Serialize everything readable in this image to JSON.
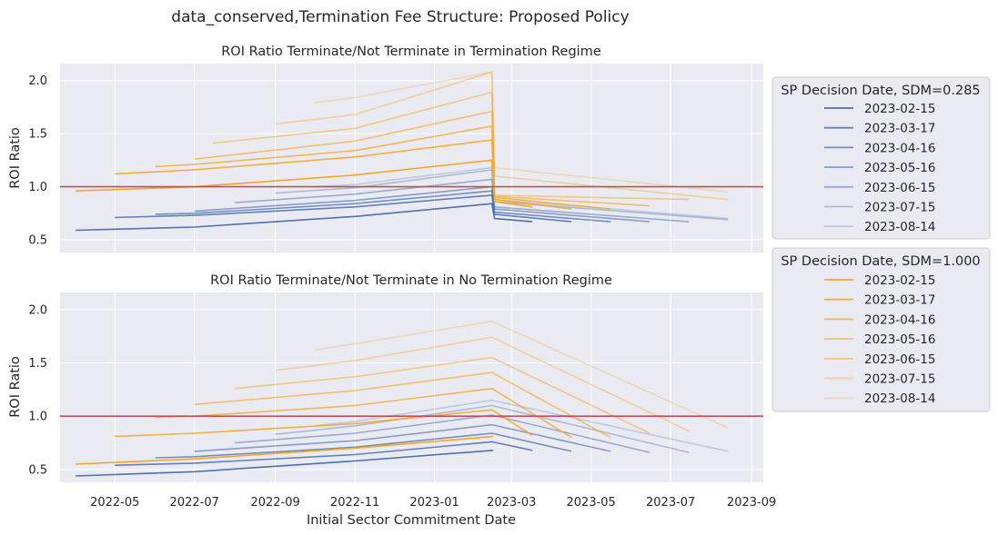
{
  "suptitle": "data_conserved,Termination Fee Structure: Proposed Policy",
  "colors": {
    "background": "#eaeaf2",
    "reference_line": "#c44e52",
    "blue_series": "#4c72b0",
    "orange_series": "#f5a623"
  },
  "chart_data": [
    {
      "type": "line",
      "title": "ROI Ratio Terminate/Not Terminate in Termination Regime",
      "xlabel": "",
      "ylabel": "ROI Ratio",
      "x_tick_labels": [],
      "yticks": [
        0.5,
        1.0,
        1.5,
        2.0
      ],
      "ylim": [
        0.38,
        2.16
      ],
      "xlim": [
        "2022-03-20",
        "2023-09-10"
      ],
      "grid": true,
      "reference_line": 1.0,
      "legend_groups": [
        {
          "title": "SP Decision Date, SDM=0.285",
          "entries": [
            "2023-02-15",
            "2023-03-17",
            "2023-04-16",
            "2023-05-16",
            "2023-06-15",
            "2023-07-15",
            "2023-08-14"
          ]
        }
      ],
      "series": [
        {
          "group": "blue",
          "label": "2023-02-15",
          "alpha": 1.0,
          "points": [
            [
              "2022-04-01",
              0.59
            ],
            [
              "2022-07-01",
              0.62
            ],
            [
              "2022-11-01",
              0.72
            ],
            [
              "2023-02-14",
              0.84
            ],
            [
              "2023-02-16",
              0.7
            ],
            [
              "2023-03-17",
              0.67
            ]
          ]
        },
        {
          "group": "blue",
          "label": "2023-03-17",
          "alpha": 0.88,
          "points": [
            [
              "2022-05-01",
              0.71
            ],
            [
              "2022-07-01",
              0.73
            ],
            [
              "2022-11-01",
              0.81
            ],
            [
              "2023-02-14",
              0.92
            ],
            [
              "2023-02-16",
              0.74
            ],
            [
              "2023-04-16",
              0.67
            ]
          ]
        },
        {
          "group": "blue",
          "label": "2023-04-16",
          "alpha": 0.76,
          "points": [
            [
              "2022-06-01",
              0.74
            ],
            [
              "2022-07-01",
              0.75
            ],
            [
              "2022-11-01",
              0.84
            ],
            [
              "2023-02-14",
              0.96
            ],
            [
              "2023-02-16",
              0.76
            ],
            [
              "2023-05-16",
              0.67
            ]
          ]
        },
        {
          "group": "blue",
          "label": "2023-05-16",
          "alpha": 0.64,
          "points": [
            [
              "2022-07-01",
              0.77
            ],
            [
              "2022-11-01",
              0.87
            ],
            [
              "2023-02-14",
              1.0
            ],
            [
              "2023-02-16",
              0.79
            ],
            [
              "2023-06-15",
              0.67
            ]
          ]
        },
        {
          "group": "blue",
          "label": "2023-06-15",
          "alpha": 0.52,
          "points": [
            [
              "2022-08-01",
              0.85
            ],
            [
              "2022-11-01",
              0.93
            ],
            [
              "2023-02-14",
              1.07
            ],
            [
              "2023-02-16",
              0.81
            ],
            [
              "2023-07-15",
              0.67
            ]
          ]
        },
        {
          "group": "blue",
          "label": "2023-07-15",
          "alpha": 0.4,
          "points": [
            [
              "2022-09-01",
              0.94
            ],
            [
              "2022-11-01",
              0.99
            ],
            [
              "2023-02-14",
              1.16
            ],
            [
              "2023-02-16",
              0.86
            ],
            [
              "2023-08-14",
              0.69
            ]
          ]
        },
        {
          "group": "blue",
          "label": "2023-08-14",
          "alpha": 0.28,
          "points": [
            [
              "2022-10-01",
              1.0
            ],
            [
              "2022-11-01",
              1.02
            ],
            [
              "2023-02-14",
              1.18
            ],
            [
              "2023-02-16",
              0.88
            ],
            [
              "2023-08-14",
              0.7
            ]
          ]
        },
        {
          "group": "orange",
          "label": "2023-02-15",
          "alpha": 1.0,
          "points": [
            [
              "2022-04-01",
              0.96
            ],
            [
              "2022-07-01",
              1.0
            ],
            [
              "2022-11-01",
              1.11
            ],
            [
              "2023-02-14",
              1.25
            ],
            [
              "2023-02-16",
              0.86
            ],
            [
              "2023-03-17",
              0.81
            ]
          ]
        },
        {
          "group": "orange",
          "label": "2023-03-17",
          "alpha": 0.88,
          "points": [
            [
              "2022-05-01",
              1.12
            ],
            [
              "2022-07-01",
              1.16
            ],
            [
              "2022-11-01",
              1.28
            ],
            [
              "2023-02-14",
              1.44
            ],
            [
              "2023-02-16",
              0.88
            ],
            [
              "2023-04-16",
              0.79
            ]
          ]
        },
        {
          "group": "orange",
          "label": "2023-04-16",
          "alpha": 0.76,
          "points": [
            [
              "2022-06-01",
              1.19
            ],
            [
              "2022-07-01",
              1.21
            ],
            [
              "2022-11-01",
              1.34
            ],
            [
              "2023-02-14",
              1.57
            ],
            [
              "2023-02-16",
              0.9
            ],
            [
              "2023-05-16",
              0.79
            ]
          ]
        },
        {
          "group": "orange",
          "label": "2023-05-16",
          "alpha": 0.64,
          "points": [
            [
              "2022-07-01",
              1.26
            ],
            [
              "2022-11-01",
              1.43
            ],
            [
              "2023-02-14",
              1.71
            ],
            [
              "2023-02-16",
              0.91
            ],
            [
              "2023-06-15",
              0.82
            ]
          ]
        },
        {
          "group": "orange",
          "label": "2023-06-15",
          "alpha": 0.52,
          "points": [
            [
              "2022-07-15",
              1.41
            ],
            [
              "2022-11-01",
              1.55
            ],
            [
              "2023-02-14",
              1.89
            ],
            [
              "2023-02-16",
              0.92
            ],
            [
              "2023-07-15",
              0.88
            ]
          ]
        },
        {
          "group": "orange",
          "label": "2023-07-15",
          "alpha": 0.4,
          "points": [
            [
              "2022-09-01",
              1.59
            ],
            [
              "2022-11-01",
              1.68
            ],
            [
              "2023-02-14",
              2.08
            ],
            [
              "2023-02-16",
              1.1
            ],
            [
              "2023-08-14",
              0.88
            ]
          ]
        },
        {
          "group": "orange",
          "label": "2023-08-14",
          "alpha": 0.28,
          "points": [
            [
              "2022-10-01",
              1.79
            ],
            [
              "2022-11-01",
              1.84
            ],
            [
              "2023-02-14",
              2.08
            ],
            [
              "2023-02-16",
              1.18
            ],
            [
              "2023-08-14",
              0.95
            ]
          ]
        }
      ]
    },
    {
      "type": "line",
      "title": "ROI Ratio Terminate/Not Terminate in No Termination Regime",
      "xlabel": "Initial Sector Commitment Date",
      "ylabel": "ROI Ratio",
      "x_tick_labels": [
        "2022-05",
        "2022-07",
        "2022-09",
        "2022-11",
        "2023-01",
        "2023-03",
        "2023-05",
        "2023-07",
        "2023-09"
      ],
      "yticks": [
        0.5,
        1.0,
        1.5,
        2.0
      ],
      "ylim": [
        0.38,
        2.16
      ],
      "xlim": [
        "2022-03-20",
        "2023-09-10"
      ],
      "grid": true,
      "reference_line": 1.0,
      "legend_groups": [
        {
          "title": "SP Decision Date, SDM=1.000",
          "entries": [
            "2023-02-15",
            "2023-03-17",
            "2023-04-16",
            "2023-05-16",
            "2023-06-15",
            "2023-07-15",
            "2023-08-14"
          ]
        }
      ],
      "series": [
        {
          "group": "blue",
          "label": "2023-02-15",
          "alpha": 1.0,
          "points": [
            [
              "2022-04-01",
              0.44
            ],
            [
              "2022-07-01",
              0.48
            ],
            [
              "2022-11-01",
              0.58
            ],
            [
              "2023-02-15",
              0.68
            ]
          ]
        },
        {
          "group": "blue",
          "label": "2023-03-17",
          "alpha": 0.88,
          "points": [
            [
              "2022-05-01",
              0.54
            ],
            [
              "2022-07-01",
              0.56
            ],
            [
              "2022-11-01",
              0.64
            ],
            [
              "2023-02-14",
              0.76
            ],
            [
              "2023-03-17",
              0.68
            ]
          ]
        },
        {
          "group": "blue",
          "label": "2023-04-16",
          "alpha": 0.76,
          "points": [
            [
              "2022-06-01",
              0.61
            ],
            [
              "2022-07-01",
              0.62
            ],
            [
              "2022-11-01",
              0.71
            ],
            [
              "2023-02-14",
              0.84
            ],
            [
              "2023-04-16",
              0.67
            ]
          ]
        },
        {
          "group": "blue",
          "label": "2023-05-16",
          "alpha": 0.64,
          "points": [
            [
              "2022-07-01",
              0.67
            ],
            [
              "2022-11-01",
              0.77
            ],
            [
              "2023-02-14",
              0.92
            ],
            [
              "2023-05-16",
              0.67
            ]
          ]
        },
        {
          "group": "blue",
          "label": "2023-06-15",
          "alpha": 0.52,
          "points": [
            [
              "2022-08-01",
              0.75
            ],
            [
              "2022-11-01",
              0.84
            ],
            [
              "2023-02-14",
              1.01
            ],
            [
              "2023-06-15",
              0.66
            ]
          ]
        },
        {
          "group": "blue",
          "label": "2023-07-15",
          "alpha": 0.4,
          "points": [
            [
              "2022-09-01",
              0.83
            ],
            [
              "2022-11-01",
              0.91
            ],
            [
              "2023-02-14",
              1.1
            ],
            [
              "2023-07-15",
              0.66
            ]
          ]
        },
        {
          "group": "blue",
          "label": "2023-08-14",
          "alpha": 0.28,
          "points": [
            [
              "2022-10-01",
              0.91
            ],
            [
              "2022-11-01",
              0.95
            ],
            [
              "2023-02-14",
              1.15
            ],
            [
              "2023-08-14",
              0.67
            ]
          ]
        },
        {
          "group": "orange",
          "label": "2023-02-15",
          "alpha": 1.0,
          "points": [
            [
              "2022-04-01",
              0.55
            ],
            [
              "2022-07-01",
              0.6
            ],
            [
              "2022-11-01",
              0.7
            ],
            [
              "2023-02-15",
              0.81
            ]
          ]
        },
        {
          "group": "orange",
          "label": "2023-03-17",
          "alpha": 0.88,
          "points": [
            [
              "2022-05-01",
              0.81
            ],
            [
              "2022-07-01",
              0.84
            ],
            [
              "2022-11-01",
              0.93
            ],
            [
              "2023-02-14",
              1.06
            ],
            [
              "2023-03-17",
              0.82
            ]
          ]
        },
        {
          "group": "orange",
          "label": "2023-04-16",
          "alpha": 0.76,
          "points": [
            [
              "2022-06-01",
              0.99
            ],
            [
              "2022-07-01",
              1.0
            ],
            [
              "2022-11-01",
              1.1
            ],
            [
              "2023-02-14",
              1.26
            ],
            [
              "2023-04-16",
              0.8
            ]
          ]
        },
        {
          "group": "orange",
          "label": "2023-05-16",
          "alpha": 0.64,
          "points": [
            [
              "2022-07-01",
              1.11
            ],
            [
              "2022-11-01",
              1.24
            ],
            [
              "2023-02-14",
              1.41
            ],
            [
              "2023-05-16",
              0.8
            ]
          ]
        },
        {
          "group": "orange",
          "label": "2023-06-15",
          "alpha": 0.52,
          "points": [
            [
              "2022-08-01",
              1.26
            ],
            [
              "2022-11-01",
              1.37
            ],
            [
              "2023-02-14",
              1.55
            ],
            [
              "2023-06-15",
              0.84
            ]
          ]
        },
        {
          "group": "orange",
          "label": "2023-07-15",
          "alpha": 0.4,
          "points": [
            [
              "2022-09-01",
              1.43
            ],
            [
              "2022-11-01",
              1.52
            ],
            [
              "2023-02-14",
              1.74
            ],
            [
              "2023-07-15",
              0.86
            ]
          ]
        },
        {
          "group": "orange",
          "label": "2023-08-14",
          "alpha": 0.28,
          "points": [
            [
              "2022-10-01",
              1.62
            ],
            [
              "2022-11-01",
              1.68
            ],
            [
              "2023-02-14",
              1.89
            ],
            [
              "2023-08-14",
              0.89
            ]
          ]
        }
      ]
    }
  ]
}
